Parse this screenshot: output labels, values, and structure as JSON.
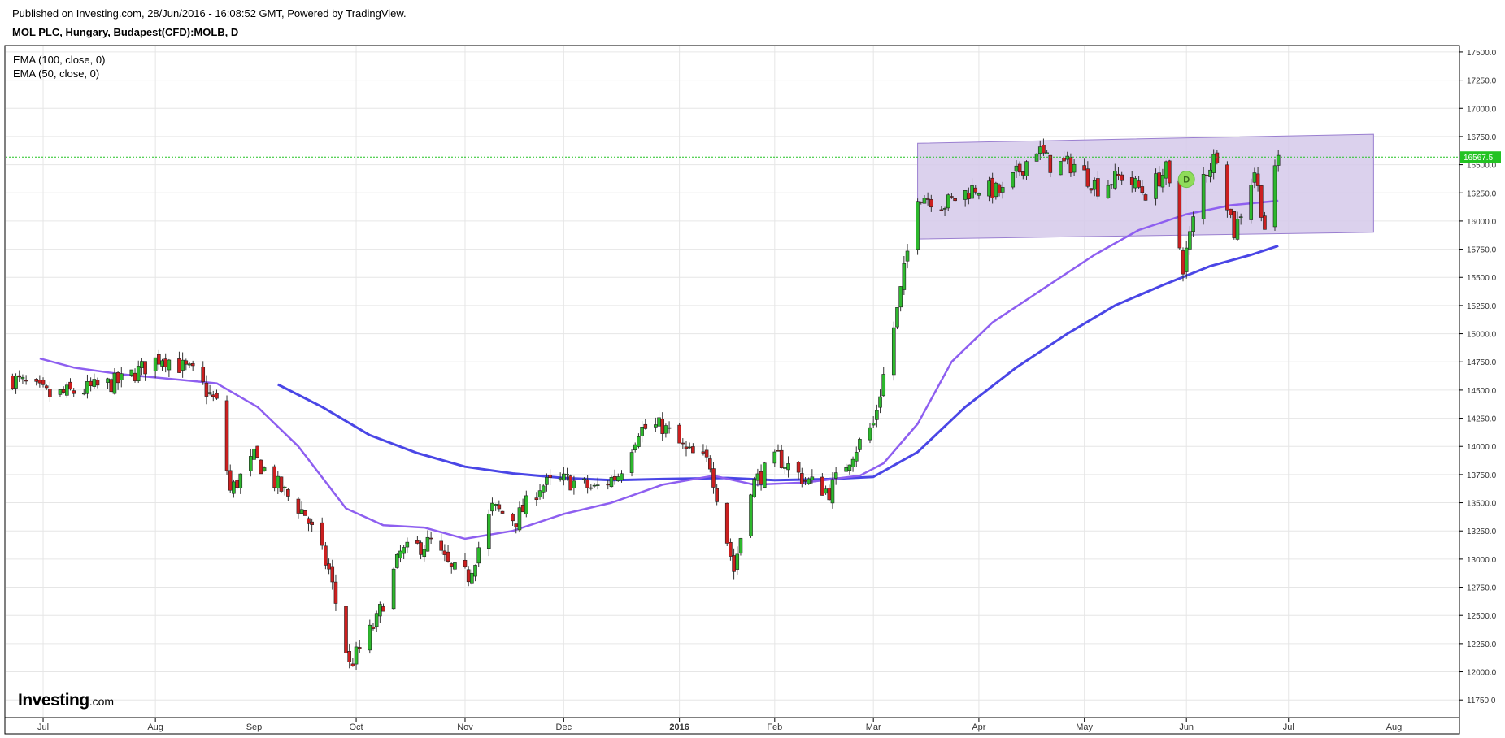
{
  "header": {
    "published": "Published on Investing.com, 28/Jun/2016 - 16:08:52 GMT, Powered by TradingView.",
    "symbol": "MOL PLC, Hungary, Budapest(CFD):MOLB, D"
  },
  "indicators": [
    "EMA (100, close, 0)",
    "EMA (50, close, 0)"
  ],
  "logo": {
    "main": "Investing",
    "suffix": ".com"
  },
  "colors": {
    "up": "#2db82d",
    "down": "#cc1f1f",
    "ema50": "#8e5ff0",
    "ema100": "#4a46e6",
    "channel_fill": "#d5c9ea",
    "channel_edge": "#9a7fd0",
    "price_line": "#22c322",
    "price_tag": "#22c322",
    "marker": "#8fdc5a"
  },
  "chart_data": {
    "type": "candlestick",
    "ylim": [
      11600,
      17550
    ],
    "y_ticks": [
      11750,
      12000,
      12250,
      12500,
      12750,
      13000,
      13250,
      13500,
      13750,
      14000,
      14250,
      14500,
      14750,
      15000,
      15250,
      15500,
      15750,
      16000,
      16250,
      16500,
      16750,
      17000,
      17250,
      17500
    ],
    "y_tick_labels": [
      "11750.0",
      "12000.0",
      "12250.0",
      "12500.0",
      "12750.0",
      "13000.0",
      "13250.0",
      "13500.0",
      "13750.0",
      "14000.0",
      "14250.0",
      "14500.0",
      "14750.0",
      "15000.0",
      "15250.0",
      "15500.0",
      "15750.0",
      "16000.0",
      "16250.0",
      "16500.0",
      "16750.0",
      "17000.0",
      "17250.0",
      "17500.0"
    ],
    "x_labels": [
      {
        "label": "Jul",
        "date": "2015-07-01"
      },
      {
        "label": "Aug",
        "date": "2015-08-03"
      },
      {
        "label": "Sep",
        "date": "2015-09-01"
      },
      {
        "label": "Oct",
        "date": "2015-10-01"
      },
      {
        "label": "Nov",
        "date": "2015-11-02"
      },
      {
        "label": "Dec",
        "date": "2015-12-01"
      },
      {
        "label": "2016",
        "date": "2016-01-04",
        "bold": true
      },
      {
        "label": "Feb",
        "date": "2016-02-01"
      },
      {
        "label": "Mar",
        "date": "2016-03-01"
      },
      {
        "label": "Apr",
        "date": "2016-04-01"
      },
      {
        "label": "May",
        "date": "2016-05-02"
      },
      {
        "label": "Jun",
        "date": "2016-06-01"
      },
      {
        "label": "Jul",
        "date": "2016-07-01"
      },
      {
        "label": "Aug",
        "date": "2016-08-01"
      }
    ],
    "last_price": 16567.5,
    "last_price_label": "16567.5",
    "marker_label": "D",
    "marker": {
      "date": "2016-06-01",
      "y": 16370
    },
    "channel": {
      "start_date": "2016-03-14",
      "end_date": "2016-07-26",
      "upper": [
        16690,
        16770
      ],
      "lower": [
        15840,
        15900
      ]
    },
    "price_waypoints": [
      [
        "2015-06-22",
        14600
      ],
      [
        "2015-07-03",
        14450
      ],
      [
        "2015-07-13",
        14500
      ],
      [
        "2015-07-24",
        14580
      ],
      [
        "2015-08-05",
        14800
      ],
      [
        "2015-08-14",
        14650
      ],
      [
        "2015-08-21",
        14380
      ],
      [
        "2015-08-25",
        13600
      ],
      [
        "2015-09-01",
        13900
      ],
      [
        "2015-09-08",
        13650
      ],
      [
        "2015-09-16",
        13400
      ],
      [
        "2015-09-23",
        12900
      ],
      [
        "2015-09-29",
        12050
      ],
      [
        "2015-10-07",
        12450
      ],
      [
        "2015-10-14",
        13050
      ],
      [
        "2015-10-23",
        13150
      ],
      [
        "2015-10-29",
        12900
      ],
      [
        "2015-11-03",
        12850
      ],
      [
        "2015-11-10",
        13450
      ],
      [
        "2015-11-17",
        13350
      ],
      [
        "2015-11-24",
        13650
      ],
      [
        "2015-12-02",
        13700
      ],
      [
        "2015-12-10",
        13620
      ],
      [
        "2015-12-17",
        13750
      ],
      [
        "2015-12-23",
        14150
      ],
      [
        "2015-12-30",
        14180
      ],
      [
        "2016-01-06",
        13950
      ],
      [
        "2016-01-13",
        13850
      ],
      [
        "2016-01-20",
        12900
      ],
      [
        "2016-01-25",
        13650
      ],
      [
        "2016-02-02",
        13900
      ],
      [
        "2016-02-10",
        13700
      ],
      [
        "2016-02-17",
        13600
      ],
      [
        "2016-02-24",
        13950
      ],
      [
        "2016-03-01",
        14200
      ],
      [
        "2016-03-08",
        15200
      ],
      [
        "2016-03-14",
        16250
      ],
      [
        "2016-03-22",
        16150
      ],
      [
        "2016-03-31",
        16300
      ],
      [
        "2016-04-08",
        16250
      ],
      [
        "2016-04-18",
        16650
      ],
      [
        "2016-04-22",
        16500
      ],
      [
        "2016-04-29",
        16500
      ],
      [
        "2016-05-06",
        16300
      ],
      [
        "2016-05-13",
        16400
      ],
      [
        "2016-05-20",
        16250
      ],
      [
        "2016-05-26",
        16450
      ],
      [
        "2016-05-31",
        15600
      ],
      [
        "2016-06-06",
        16400
      ],
      [
        "2016-06-10",
        16600
      ],
      [
        "2016-06-15",
        15900
      ],
      [
        "2016-06-21",
        16450
      ],
      [
        "2016-06-24",
        15950
      ],
      [
        "2016-06-28",
        16567.5
      ]
    ],
    "ema50": [
      [
        "2015-06-30",
        14780
      ],
      [
        "2015-07-10",
        14700
      ],
      [
        "2015-07-24",
        14640
      ],
      [
        "2015-08-07",
        14600
      ],
      [
        "2015-08-21",
        14560
      ],
      [
        "2015-09-02",
        14350
      ],
      [
        "2015-09-14",
        14000
      ],
      [
        "2015-09-28",
        13450
      ],
      [
        "2015-10-09",
        13300
      ],
      [
        "2015-10-21",
        13280
      ],
      [
        "2015-11-02",
        13180
      ],
      [
        "2015-11-16",
        13250
      ],
      [
        "2015-12-01",
        13400
      ],
      [
        "2015-12-15",
        13500
      ],
      [
        "2015-12-30",
        13660
      ],
      [
        "2016-01-14",
        13740
      ],
      [
        "2016-01-26",
        13660
      ],
      [
        "2016-02-10",
        13680
      ],
      [
        "2016-02-26",
        13740
      ],
      [
        "2016-03-04",
        13850
      ],
      [
        "2016-03-14",
        14200
      ],
      [
        "2016-03-24",
        14750
      ],
      [
        "2016-04-05",
        15100
      ],
      [
        "2016-04-20",
        15400
      ],
      [
        "2016-05-05",
        15700
      ],
      [
        "2016-05-18",
        15920
      ],
      [
        "2016-06-01",
        16060
      ],
      [
        "2016-06-14",
        16140
      ],
      [
        "2016-06-28",
        16180
      ]
    ],
    "ema100": [
      [
        "2015-09-08",
        14550
      ],
      [
        "2015-09-21",
        14350
      ],
      [
        "2015-10-05",
        14100
      ],
      [
        "2015-10-19",
        13940
      ],
      [
        "2015-11-02",
        13820
      ],
      [
        "2015-11-16",
        13760
      ],
      [
        "2015-12-01",
        13720
      ],
      [
        "2015-12-15",
        13700
      ],
      [
        "2015-12-30",
        13710
      ],
      [
        "2016-01-18",
        13720
      ],
      [
        "2016-02-01",
        13700
      ],
      [
        "2016-02-17",
        13710
      ],
      [
        "2016-03-01",
        13730
      ],
      [
        "2016-03-14",
        13950
      ],
      [
        "2016-03-28",
        14350
      ],
      [
        "2016-04-12",
        14700
      ],
      [
        "2016-04-27",
        15000
      ],
      [
        "2016-05-11",
        15250
      ],
      [
        "2016-05-25",
        15430
      ],
      [
        "2016-06-08",
        15600
      ],
      [
        "2016-06-20",
        15700
      ],
      [
        "2016-06-28",
        15780
      ]
    ]
  }
}
